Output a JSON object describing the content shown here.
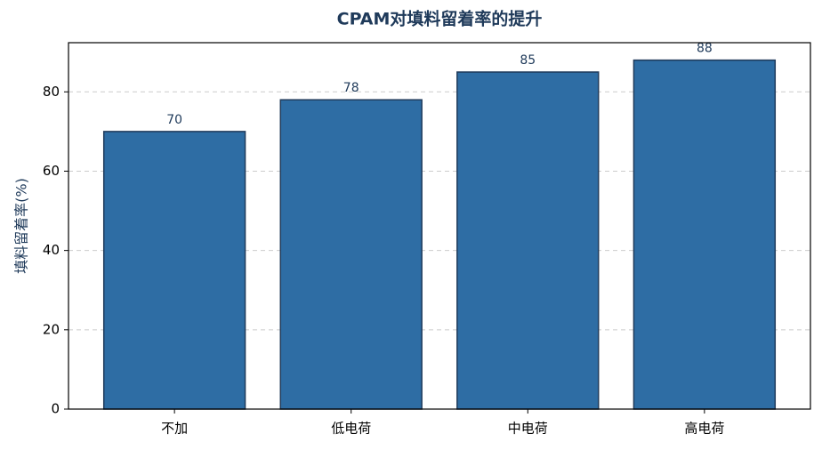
{
  "chart_data": {
    "type": "bar",
    "title": "CPAM对填料留着率的提升",
    "y_label": "填料留着率(%)",
    "categories": [
      "不加",
      "低电荷",
      "中电荷",
      "高电荷"
    ],
    "values": [
      70,
      78,
      85,
      88
    ],
    "color": "#2e6da4",
    "edge_color": "#1f3a5a",
    "ylim": [
      0,
      92.4
    ],
    "yticks": [
      0,
      20,
      40,
      60,
      80
    ],
    "grid": true
  }
}
